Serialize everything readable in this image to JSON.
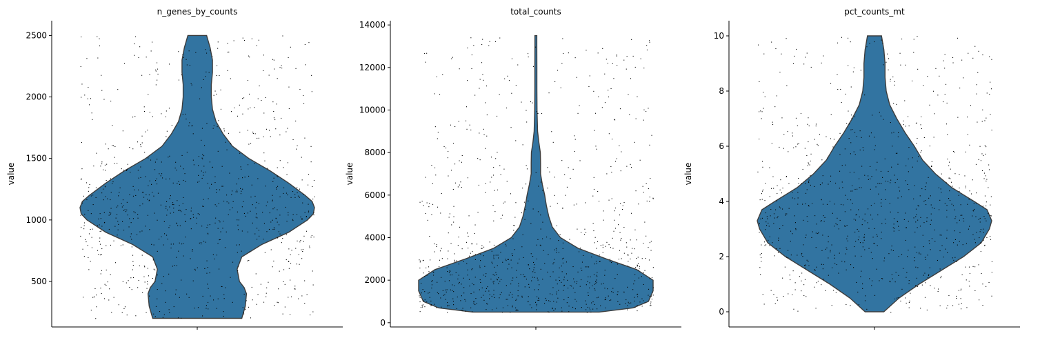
{
  "chart_data": [
    {
      "type": "violin",
      "title": "n_genes_by_counts",
      "ylabel": "value",
      "ylim": [
        130,
        2620
      ],
      "yticks": [
        500,
        1000,
        1500,
        2000,
        2500
      ],
      "data_range": [
        200,
        2500
      ],
      "violin_color": "#3274a1",
      "density_profile": [
        [
          200,
          0.38
        ],
        [
          300,
          0.41
        ],
        [
          400,
          0.42
        ],
        [
          450,
          0.4
        ],
        [
          500,
          0.36
        ],
        [
          600,
          0.34
        ],
        [
          700,
          0.38
        ],
        [
          800,
          0.55
        ],
        [
          900,
          0.78
        ],
        [
          1000,
          0.94
        ],
        [
          1050,
          0.99
        ],
        [
          1100,
          1.0
        ],
        [
          1150,
          0.98
        ],
        [
          1200,
          0.92
        ],
        [
          1300,
          0.78
        ],
        [
          1400,
          0.62
        ],
        [
          1500,
          0.44
        ],
        [
          1600,
          0.3
        ],
        [
          1700,
          0.22
        ],
        [
          1800,
          0.16
        ],
        [
          1900,
          0.13
        ],
        [
          2000,
          0.12
        ],
        [
          2100,
          0.12
        ],
        [
          2200,
          0.13
        ],
        [
          2300,
          0.13
        ],
        [
          2400,
          0.11
        ],
        [
          2500,
          0.08
        ]
      ]
    },
    {
      "type": "violin",
      "title": "total_counts",
      "ylabel": "value",
      "ylim": [
        -200,
        14200
      ],
      "yticks": [
        0,
        2000,
        4000,
        6000,
        8000,
        10000,
        12000,
        14000
      ],
      "data_range": [
        500,
        13500
      ],
      "violin_color": "#3274a1",
      "density_profile": [
        [
          500,
          0.54
        ],
        [
          700,
          0.83
        ],
        [
          1000,
          0.96
        ],
        [
          1500,
          1.0
        ],
        [
          2000,
          1.0
        ],
        [
          2500,
          0.86
        ],
        [
          3000,
          0.6
        ],
        [
          3500,
          0.36
        ],
        [
          4000,
          0.21
        ],
        [
          4500,
          0.14
        ],
        [
          5000,
          0.11
        ],
        [
          5500,
          0.09
        ],
        [
          6000,
          0.075
        ],
        [
          6500,
          0.055
        ],
        [
          7000,
          0.04
        ],
        [
          7500,
          0.04
        ],
        [
          8000,
          0.038
        ],
        [
          8500,
          0.025
        ],
        [
          9000,
          0.015
        ],
        [
          10000,
          0.01
        ],
        [
          11000,
          0.009
        ],
        [
          12000,
          0.009
        ],
        [
          13000,
          0.008
        ],
        [
          13500,
          0.008
        ]
      ]
    },
    {
      "type": "violin",
      "title": "pct_counts_mt",
      "ylabel": "value",
      "ylim": [
        -0.55,
        10.55
      ],
      "yticks": [
        0,
        2,
        4,
        6,
        8,
        10
      ],
      "data_range": [
        0,
        10
      ],
      "violin_color": "#3274a1",
      "density_profile": [
        [
          0,
          0.08
        ],
        [
          0.5,
          0.21
        ],
        [
          1,
          0.38
        ],
        [
          1.5,
          0.57
        ],
        [
          2,
          0.76
        ],
        [
          2.5,
          0.91
        ],
        [
          3,
          0.98
        ],
        [
          3.3,
          1.0
        ],
        [
          3.7,
          0.96
        ],
        [
          4,
          0.85
        ],
        [
          4.5,
          0.66
        ],
        [
          5,
          0.52
        ],
        [
          5.5,
          0.41
        ],
        [
          6,
          0.34
        ],
        [
          6.5,
          0.26
        ],
        [
          7,
          0.19
        ],
        [
          7.5,
          0.13
        ],
        [
          8,
          0.1
        ],
        [
          8.5,
          0.09
        ],
        [
          9,
          0.09
        ],
        [
          9.5,
          0.08
        ],
        [
          10,
          0.06
        ]
      ]
    }
  ]
}
